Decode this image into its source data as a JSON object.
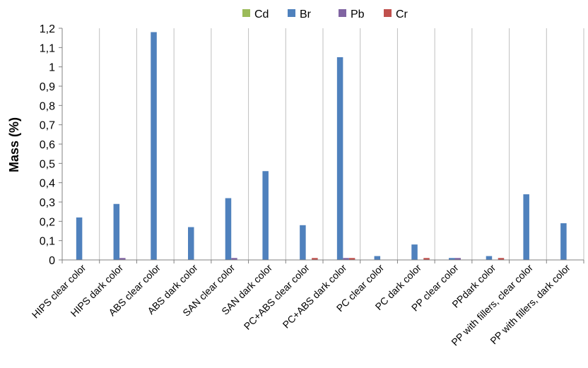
{
  "chart_data": {
    "type": "bar",
    "title": "",
    "xlabel": "",
    "ylabel": "Mass (%)",
    "ylim": [
      0,
      1.2
    ],
    "yticks": [
      "0",
      "0,1",
      "0,2",
      "0,3",
      "0,4",
      "0,5",
      "0,6",
      "0,7",
      "0,8",
      "0,9",
      "1",
      "1,1",
      "1,2"
    ],
    "grid": "vertical lines between categories",
    "legend_position": "top",
    "categories": [
      "HIPS clear color",
      "HIPS dark color",
      "ABS clear color",
      "ABS dark color",
      "SAN clear color",
      "SAN dark color",
      "PC+ABS clear color",
      "PC+ABS dark color",
      "PC clear color",
      "PC dark color",
      "PP clear color",
      "PPdark color",
      "PP with fillers, clear color",
      "PP with fillers, dark color"
    ],
    "series": [
      {
        "name": "Cd",
        "color": "#9BBB59",
        "values": [
          0,
          0,
          0,
          0,
          0,
          0,
          0,
          0,
          0,
          0,
          0,
          0,
          0,
          0
        ]
      },
      {
        "name": "Br",
        "color": "#4F81BD",
        "values": [
          0.22,
          0.29,
          1.18,
          0.17,
          0.32,
          0.46,
          0.18,
          1.05,
          0.02,
          0.08,
          0.01,
          0.02,
          0.34,
          0.19
        ]
      },
      {
        "name": "Pb",
        "color": "#8064A2",
        "values": [
          0,
          0.01,
          0,
          0,
          0.01,
          0,
          0,
          0.01,
          0,
          0,
          0.01,
          0,
          0,
          0
        ]
      },
      {
        "name": "Cr",
        "color": "#C0504D",
        "values": [
          0,
          0,
          0,
          0,
          0,
          0,
          0.01,
          0.01,
          0,
          0.01,
          0,
          0.01,
          0,
          0
        ]
      }
    ]
  }
}
